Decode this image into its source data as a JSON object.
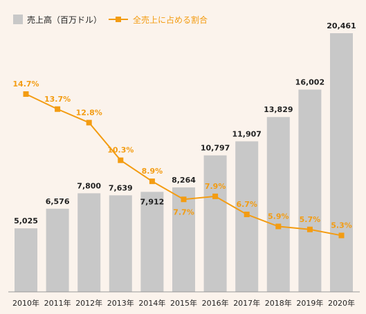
{
  "legend": {
    "bar_label": "売上高（百万ドル）",
    "line_label": "全売上に占める割合"
  },
  "colors": {
    "bar": "#c8c8c8",
    "line": "#f39c12",
    "background": "#fbf3ec",
    "axis": "#999999"
  },
  "chart_data": {
    "type": "bar",
    "categories": [
      "2010年",
      "2011年",
      "2012年",
      "2013年",
      "2014年",
      "2015年",
      "2016年",
      "2017年",
      "2018年",
      "2019年",
      "2020年"
    ],
    "series": [
      {
        "name": "売上高（百万ドル）",
        "type": "bar",
        "values": [
          5025,
          6576,
          7800,
          7639,
          7912,
          8264,
          10797,
          11907,
          13829,
          16002,
          20461
        ],
        "labels": [
          "5,025",
          "6,576",
          "7,800",
          "7,639",
          "7,912",
          "8,264",
          "10,797",
          "11,907",
          "13,829",
          "16,002",
          "20,461"
        ]
      },
      {
        "name": "全売上に占める割合",
        "type": "line",
        "values": [
          14.7,
          13.7,
          12.8,
          10.3,
          8.9,
          7.7,
          7.9,
          6.7,
          5.9,
          5.7,
          5.3
        ],
        "labels": [
          "14.7%",
          "13.7%",
          "12.8%",
          "10.3%",
          "8.9%",
          "7.7%",
          "7.9%",
          "6.7%",
          "5.9%",
          "5.7%",
          "5.3%"
        ]
      }
    ],
    "grid": false,
    "legend_position": "top-left"
  }
}
